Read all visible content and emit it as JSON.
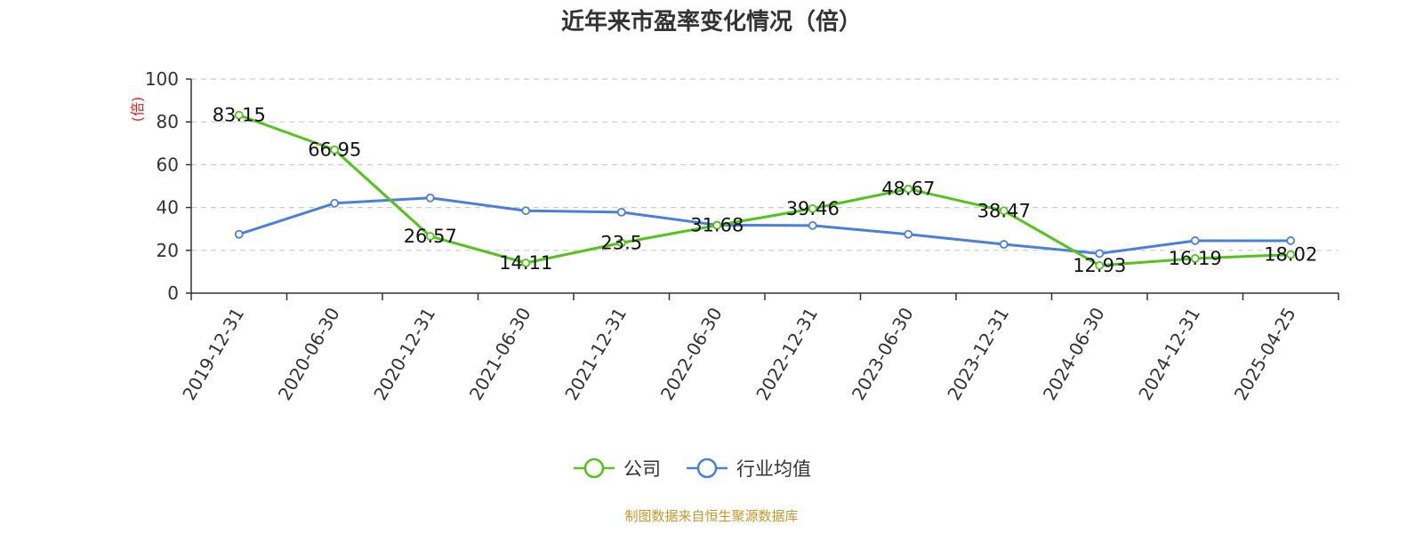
{
  "chart_data": {
    "type": "line",
    "title": "近年来市盈率变化情况（倍）",
    "ylabel": "(倍)",
    "xlabel": "",
    "ylim": [
      0,
      100
    ],
    "yticks": [
      0,
      20,
      40,
      60,
      80,
      100
    ],
    "grid": true,
    "categories": [
      "2019-12-31",
      "2020-06-30",
      "2020-12-31",
      "2021-06-30",
      "2021-12-31",
      "2022-06-30",
      "2022-12-31",
      "2023-06-30",
      "2023-12-31",
      "2024-06-30",
      "2024-12-31",
      "2025-04-25"
    ],
    "series": [
      {
        "name": "公司",
        "color": "#52c41a",
        "values": [
          83.15,
          66.95,
          26.57,
          14.11,
          23.5,
          31.68,
          39.46,
          48.67,
          38.47,
          12.93,
          16.19,
          18.02
        ],
        "labels": [
          "83.15",
          "66.95",
          "26.57",
          "14.11",
          "23.5",
          "31.68",
          "39.46",
          "48.67",
          "38.47",
          "12.93",
          "16.19",
          "18.02"
        ]
      },
      {
        "name": "行业均值",
        "color": "#4a7fdc",
        "values": [
          27.5,
          42.0,
          44.5,
          38.5,
          37.8,
          31.8,
          31.6,
          27.5,
          22.8,
          18.5,
          24.5,
          24.5
        ]
      }
    ],
    "legend_position": "bottom",
    "source": "制图数据来自恒生聚源数据库"
  }
}
